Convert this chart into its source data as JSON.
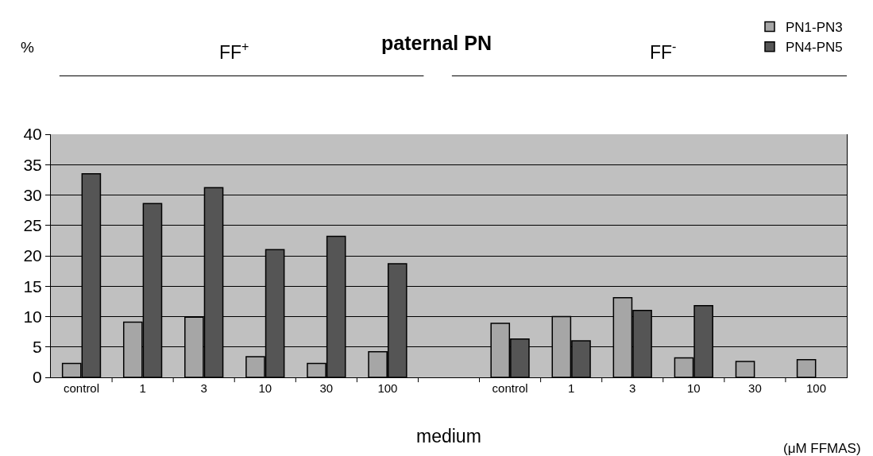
{
  "chart_data": {
    "type": "bar",
    "title": "paternal PN",
    "xlabel": "medium",
    "ylabel": "%",
    "categories": [
      "control",
      "1",
      "3",
      "10",
      "30",
      "100",
      null,
      "control",
      "1",
      "3",
      "10",
      "30",
      "100"
    ],
    "series": [
      {
        "name": "PN1-PN3",
        "color": "#a6a6a6",
        "values": [
          2.3,
          9.1,
          9.9,
          3.4,
          2.3,
          4.2,
          null,
          8.9,
          10.0,
          13.1,
          3.2,
          2.6,
          2.9
        ]
      },
      {
        "name": "PN4-PN5",
        "color": "#555555",
        "values": [
          33.5,
          28.6,
          31.2,
          21.0,
          23.2,
          18.7,
          null,
          6.3,
          6.0,
          11.0,
          11.8,
          null,
          null
        ]
      }
    ],
    "ylim": [
      0,
      40
    ],
    "yticks": [
      0,
      5,
      10,
      15,
      20,
      25,
      30,
      35,
      40
    ],
    "grid": "y",
    "legend": "top right",
    "annotations": [
      "FF$^{+}$",
      "FF$^{-}$",
      "(μM FFMAS)"
    ]
  }
}
